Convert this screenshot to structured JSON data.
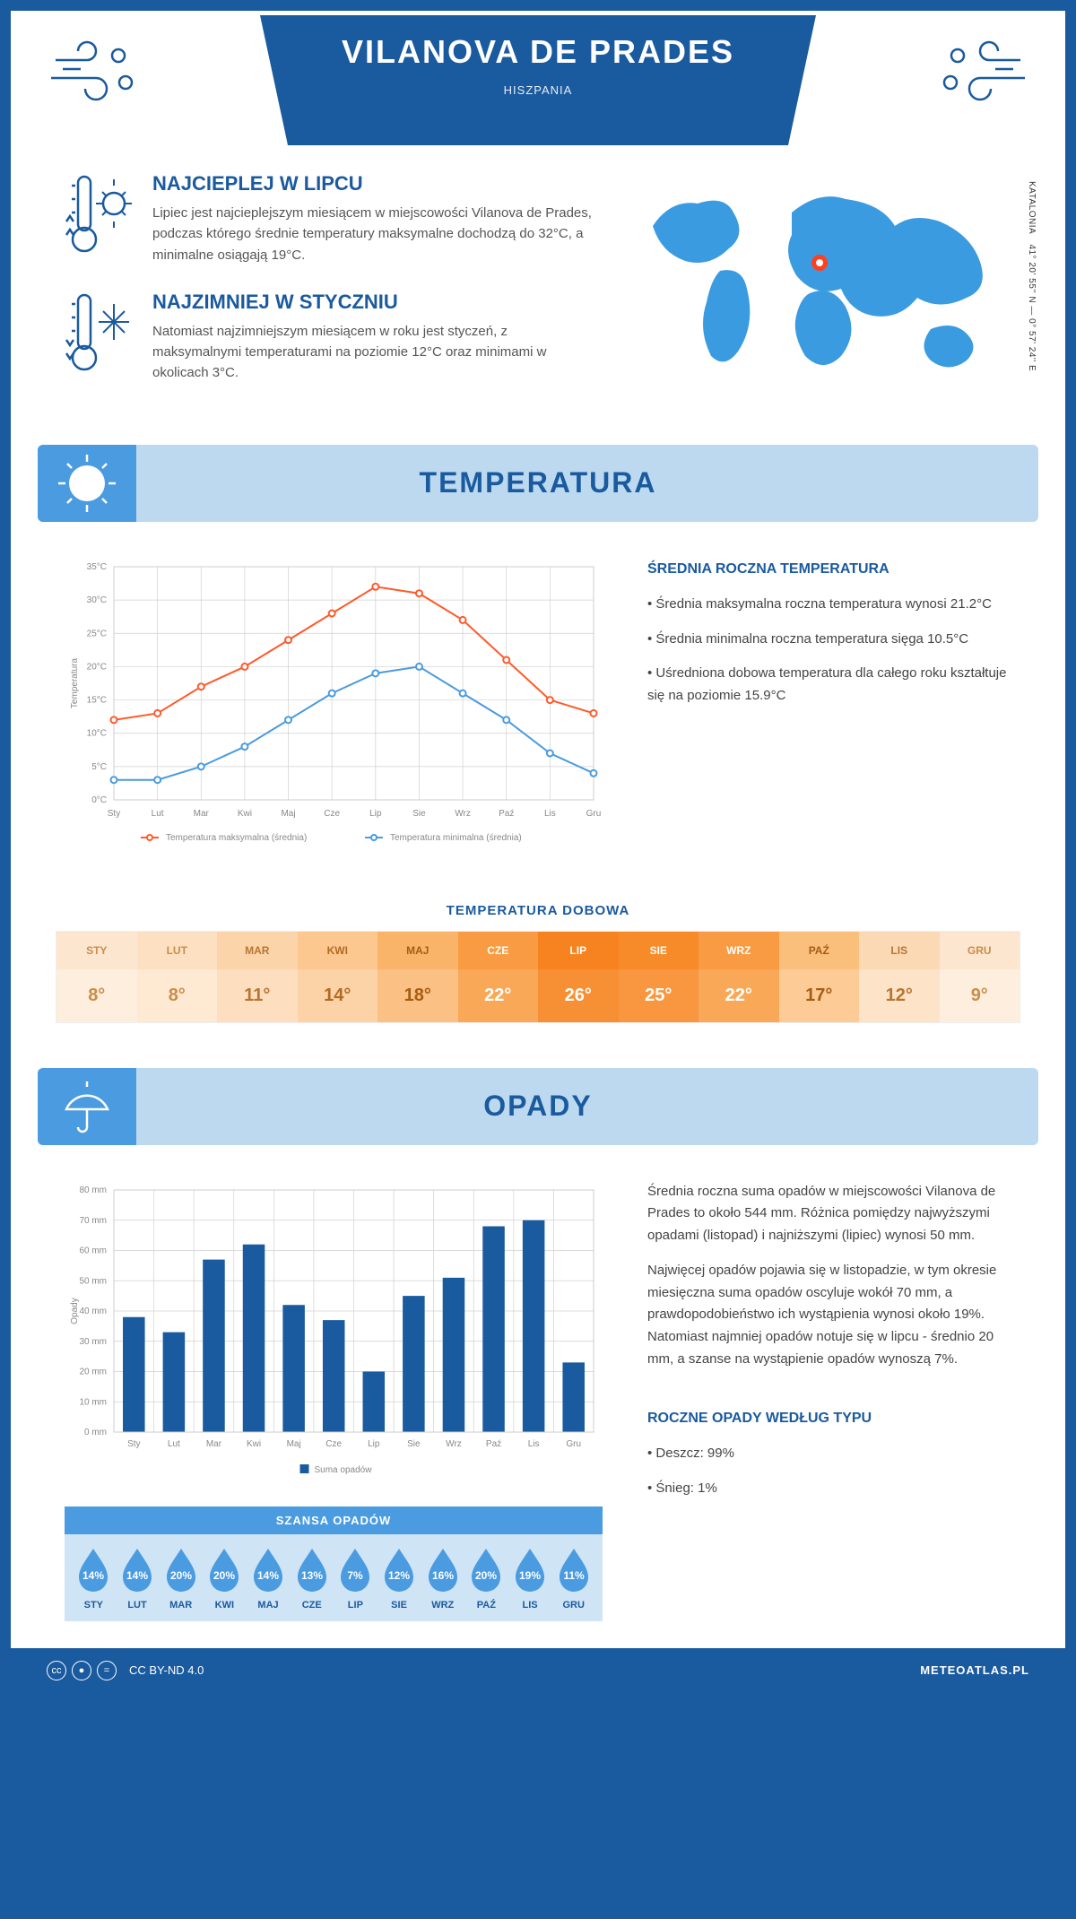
{
  "header": {
    "title": "VILANOVA DE PRADES",
    "country": "HISZPANIA"
  },
  "coords": {
    "region": "KATALONIA",
    "lat": "41° 20' 55'' N",
    "lon": "0° 57' 24'' E"
  },
  "intro": {
    "hot": {
      "title": "NAJCIEPLEJ W LIPCU",
      "text": "Lipiec jest najcieplejszym miesiącem w miejscowości Vilanova de Prades, podczas którego średnie temperatury maksymalne dochodzą do 32°C, a minimalne osiągają 19°C."
    },
    "cold": {
      "title": "NAJZIMNIEJ W STYCZNIU",
      "text": "Natomiast najzimniejszym miesiącem w roku jest styczeń, z maksymalnymi temperaturami na poziomie 12°C oraz minimami w okolicach 3°C."
    }
  },
  "months": [
    "Sty",
    "Lut",
    "Mar",
    "Kwi",
    "Maj",
    "Cze",
    "Lip",
    "Sie",
    "Wrz",
    "Paź",
    "Lis",
    "Gru"
  ],
  "months_upper": [
    "STY",
    "LUT",
    "MAR",
    "KWI",
    "MAJ",
    "CZE",
    "LIP",
    "SIE",
    "WRZ",
    "PAŹ",
    "LIS",
    "GRU"
  ],
  "temp": {
    "section_title": "TEMPERATURA",
    "chart": {
      "type": "line",
      "y_label": "Temperatura",
      "y_min": 0,
      "y_max": 35,
      "y_step": 5,
      "y_suffix": "°C",
      "series": [
        {
          "name": "Temperatura maksymalna (średnia)",
          "color": "#ff5a2a",
          "values": [
            12,
            13,
            17,
            20,
            24,
            28,
            32,
            31,
            27,
            21,
            15,
            13
          ]
        },
        {
          "name": "Temperatura minimalna (średnia)",
          "color": "#4a9be0",
          "values": [
            3,
            3,
            5,
            8,
            12,
            16,
            19,
            20,
            16,
            12,
            7,
            4
          ]
        }
      ],
      "grid_color": "#d8d8d8",
      "background": "#ffffff",
      "marker": "circle"
    },
    "summary": {
      "title": "ŚREDNIA ROCZNA TEMPERATURA",
      "bullets": [
        "Średnia maksymalna roczna temperatura wynosi 21.2°C",
        "Średnia minimalna roczna temperatura sięga 10.5°C",
        "Uśredniona dobowa temperatura dla całego roku kształtuje się na poziomie 15.9°C"
      ]
    },
    "daily_table": {
      "title": "TEMPERATURA DOBOWA",
      "values": [
        "8°",
        "8°",
        "11°",
        "14°",
        "18°",
        "22°",
        "26°",
        "25°",
        "22°",
        "17°",
        "12°",
        "9°"
      ],
      "cell_colors_head": [
        "#fde6cf",
        "#fde0c2",
        "#fcd4a9",
        "#fcc88f",
        "#fab469",
        "#f89b42",
        "#f6831f",
        "#f78a29",
        "#f89b42",
        "#fbbf7c",
        "#fcd9b5",
        "#fde6cf"
      ],
      "cell_colors_val": [
        "#feeedd",
        "#fee9d2",
        "#fddfbf",
        "#fcd3a7",
        "#fbc083",
        "#f9a858",
        "#f79034",
        "#f89740",
        "#f9a858",
        "#fccb96",
        "#fde3c7",
        "#feeedd"
      ],
      "text_colors": [
        "#c98d4a",
        "#c98d4a",
        "#b87532",
        "#b06a24",
        "#a55d13",
        "#ffffff",
        "#ffffff",
        "#ffffff",
        "#ffffff",
        "#a55d13",
        "#b87532",
        "#c98d4a"
      ]
    }
  },
  "precip": {
    "section_title": "OPADY",
    "chart": {
      "type": "bar",
      "y_label": "Opady",
      "y_min": 0,
      "y_max": 80,
      "y_step": 10,
      "y_suffix": " mm",
      "bar_color": "#1a5a9e",
      "legend": "Suma opadów",
      "values": [
        38,
        33,
        57,
        62,
        42,
        37,
        20,
        45,
        51,
        68,
        70,
        23
      ]
    },
    "summary": {
      "p1": "Średnia roczna suma opadów w miejscowości Vilanova de Prades to około 544 mm. Różnica pomiędzy najwyższymi opadami (listopad) i najniższymi (lipiec) wynosi 50 mm.",
      "p2": "Najwięcej opadów pojawia się w listopadzie, w tym okresie miesięczna suma opadów oscyluje wokół 70 mm, a prawdopodobieństwo ich wystąpienia wynosi około 19%. Natomiast najmniej opadów notuje się w lipcu - średnio 20 mm, a szanse na wystąpienie opadów wynoszą 7%."
    },
    "chance": {
      "title": "SZANSA OPADÓW",
      "values": [
        "14%",
        "14%",
        "20%",
        "20%",
        "14%",
        "13%",
        "7%",
        "12%",
        "16%",
        "20%",
        "19%",
        "11%"
      ],
      "drop_color": "#4a9be0"
    },
    "by_type": {
      "title": "ROCZNE OPADY WEDŁUG TYPU",
      "bullets": [
        "Deszcz: 99%",
        "Śnieg: 1%"
      ]
    }
  },
  "footer": {
    "license": "CC BY-ND 4.0",
    "site": "METEOATLAS.PL"
  }
}
